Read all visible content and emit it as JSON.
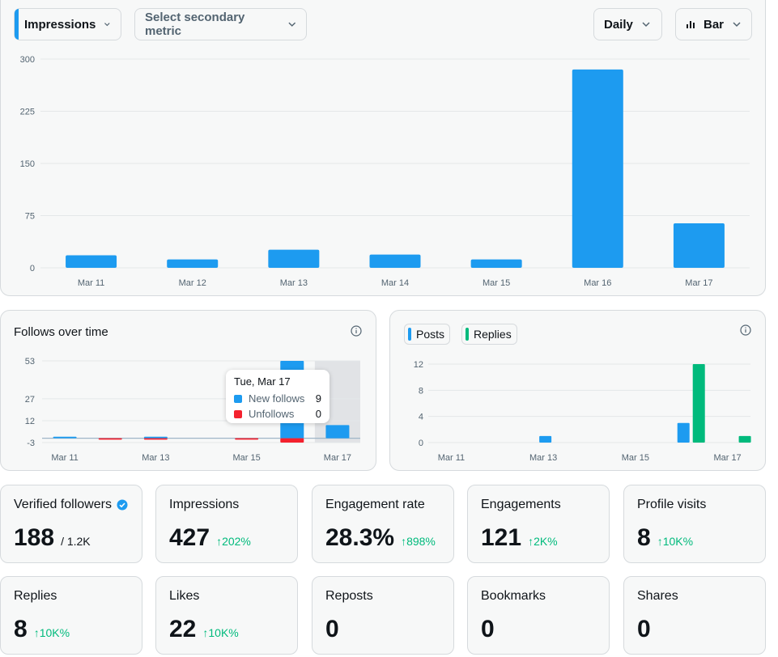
{
  "controls": {
    "primary_metric": "Impressions",
    "secondary_metric": "Select secondary metric",
    "period": "Daily",
    "chart_type": "Bar"
  },
  "colors": {
    "blue": "#1d9bf0",
    "green": "#00ba7c",
    "red": "#f4212e"
  },
  "follows": {
    "title": "Follows over time",
    "tooltip": {
      "date": "Tue, Mar 17",
      "new_label": "New follows",
      "new_value": "9",
      "unf_label": "Unfollows",
      "unf_value": "0"
    }
  },
  "posts_chart": {
    "legend_posts": "Posts",
    "legend_replies": "Replies"
  },
  "chart_data": [
    {
      "type": "bar",
      "categories": [
        "Mar 11",
        "Mar 12",
        "Mar 13",
        "Mar 14",
        "Mar 15",
        "Mar 16",
        "Mar 17"
      ],
      "values": [
        18,
        12,
        26,
        19,
        12,
        285,
        64
      ],
      "yticks": [
        0,
        75,
        150,
        225,
        300
      ],
      "ylim": [
        0,
        300
      ]
    },
    {
      "type": "bar",
      "categories": [
        "Mar 11",
        "Mar 12",
        "Mar 13",
        "Mar 14",
        "Mar 15",
        "Mar 16",
        "Mar 17"
      ],
      "xtick_labels": [
        "Mar 11",
        "Mar 13",
        "Mar 15",
        "Mar 17"
      ],
      "series": [
        {
          "name": "New follows",
          "values": [
            1,
            0,
            1,
            0,
            0,
            53,
            9
          ]
        },
        {
          "name": "Unfollows",
          "values": [
            0,
            -1,
            -1,
            0,
            -1,
            -3,
            0
          ]
        }
      ],
      "yticks": [
        -3,
        12,
        27,
        53
      ],
      "ylim": [
        -3,
        53
      ]
    },
    {
      "type": "bar",
      "categories": [
        "Mar 11",
        "Mar 12",
        "Mar 13",
        "Mar 14",
        "Mar 15",
        "Mar 16",
        "Mar 17"
      ],
      "xtick_labels": [
        "Mar 11",
        "Mar 13",
        "Mar 15",
        "Mar 17"
      ],
      "series": [
        {
          "name": "Posts",
          "values": [
            0,
            0,
            1,
            0,
            0,
            3,
            0
          ]
        },
        {
          "name": "Replies",
          "values": [
            0,
            0,
            0,
            0,
            0,
            12,
            1
          ]
        }
      ],
      "yticks": [
        0,
        4,
        8,
        12
      ],
      "ylim": [
        0,
        12
      ]
    }
  ],
  "stats": [
    {
      "label": "Verified followers",
      "value": "188",
      "sub": "/ 1.2K",
      "delta": "",
      "verified": true
    },
    {
      "label": "Impressions",
      "value": "427",
      "sub": "",
      "delta": "202%"
    },
    {
      "label": "Engagement rate",
      "value": "28.3%",
      "sub": "",
      "delta": "898%"
    },
    {
      "label": "Engagements",
      "value": "121",
      "sub": "",
      "delta": "2K%"
    },
    {
      "label": "Profile visits",
      "value": "8",
      "sub": "",
      "delta": "10K%"
    },
    {
      "label": "Replies",
      "value": "8",
      "sub": "",
      "delta": "10K%"
    },
    {
      "label": "Likes",
      "value": "22",
      "sub": "",
      "delta": "10K%"
    },
    {
      "label": "Reposts",
      "value": "0",
      "sub": "",
      "delta": ""
    },
    {
      "label": "Bookmarks",
      "value": "0",
      "sub": "",
      "delta": ""
    },
    {
      "label": "Shares",
      "value": "0",
      "sub": "",
      "delta": ""
    }
  ]
}
